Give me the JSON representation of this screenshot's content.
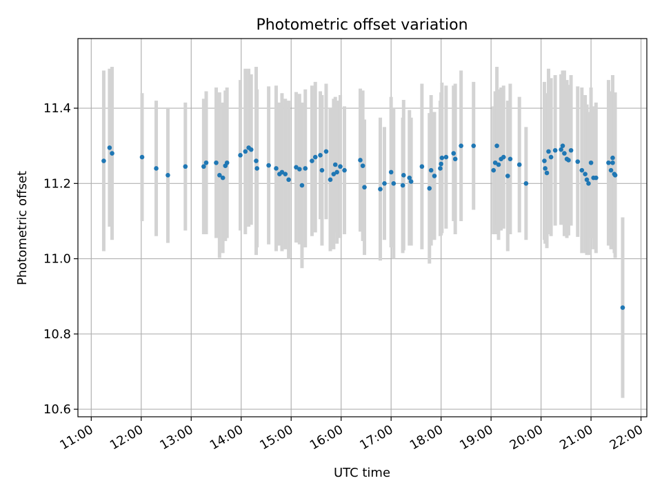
{
  "chart_data": {
    "type": "scatter",
    "title": "Photometric offset variation",
    "xlabel": "UTC time",
    "ylabel": "Photometric offset",
    "x_tick_labels": [
      "11:00",
      "12:00",
      "13:00",
      "14:00",
      "15:00",
      "16:00",
      "17:00",
      "18:00",
      "19:00",
      "20:00",
      "21:00",
      "22:00"
    ],
    "y_tick_labels": [
      "10.6",
      "10.8",
      "11.0",
      "11.2",
      "11.4"
    ],
    "xlim": [
      "10:44",
      "22:07"
    ],
    "ylim": [
      10.58,
      11.585
    ],
    "grid": true,
    "colors": {
      "points": "#1f77b4",
      "errorbars": "#d3d3d3",
      "grid": "#b0b0b0"
    },
    "series": [
      {
        "x": [
          "11:15",
          "11:22",
          "11:25",
          "12:01",
          "12:18",
          "12:32",
          "12:53",
          "13:15",
          "13:18",
          "13:30",
          "13:34",
          "13:38",
          "13:41",
          "13:43",
          "13:59",
          "14:05",
          "14:09",
          "14:12",
          "14:18",
          "14:19",
          "14:33",
          "14:42",
          "14:46",
          "14:49",
          "14:53",
          "14:57",
          "15:06",
          "15:10",
          "15:13",
          "15:17",
          "15:25",
          "15:29",
          "15:35",
          "15:37",
          "15:42",
          "15:47",
          "15:51",
          "15:53",
          "15:55",
          "15:59",
          "16:04",
          "16:23",
          "16:26",
          "16:28",
          "16:47",
          "16:52",
          "17:00",
          "17:03",
          "17:14",
          "17:15",
          "17:22",
          "17:24",
          "17:37",
          "17:46",
          "17:48",
          "17:52",
          "17:59",
          "18:00",
          "18:01",
          "18:06",
          "18:15",
          "18:17",
          "18:24",
          "18:39",
          "19:03",
          "19:05",
          "19:07",
          "19:09",
          "19:12",
          "19:15",
          "19:20",
          "19:23",
          "19:34",
          "19:42",
          "20:04",
          "20:05",
          "20:07",
          "20:09",
          "20:12",
          "20:17",
          "20:24",
          "20:26",
          "20:28",
          "20:31",
          "20:33",
          "20:36",
          "20:44",
          "20:49",
          "20:53",
          "20:55",
          "20:57",
          "21:00",
          "21:03",
          "21:06",
          "21:21",
          "21:24",
          "21:26",
          "21:26",
          "21:28",
          "21:29",
          "21:38"
        ],
        "y": [
          11.26,
          11.295,
          11.28,
          11.27,
          11.24,
          11.222,
          11.245,
          11.245,
          11.255,
          11.255,
          11.222,
          11.215,
          11.247,
          11.255,
          11.275,
          11.285,
          11.295,
          11.29,
          11.26,
          11.24,
          11.248,
          11.24,
          11.225,
          11.23,
          11.225,
          11.21,
          11.243,
          11.238,
          11.195,
          11.24,
          11.26,
          11.27,
          11.275,
          11.235,
          11.285,
          11.21,
          11.225,
          11.25,
          11.23,
          11.245,
          11.235,
          11.262,
          11.247,
          11.19,
          11.185,
          11.2,
          11.23,
          11.2,
          11.195,
          11.222,
          11.215,
          11.205,
          11.245,
          11.187,
          11.235,
          11.22,
          11.24,
          11.252,
          11.268,
          11.27,
          11.28,
          11.265,
          11.3,
          11.3,
          11.235,
          11.255,
          11.3,
          11.25,
          11.265,
          11.27,
          11.22,
          11.265,
          11.25,
          11.2,
          11.26,
          11.24,
          11.228,
          11.285,
          11.27,
          11.288,
          11.29,
          11.3,
          11.28,
          11.265,
          11.262,
          11.288,
          11.258,
          11.235,
          11.225,
          11.21,
          11.2,
          11.255,
          11.215,
          11.215,
          11.255,
          11.235,
          11.255,
          11.268,
          11.225,
          11.222,
          10.87
        ],
        "err": [
          0.24,
          0.21,
          0.23,
          0.17,
          0.18,
          0.18,
          0.17,
          0.18,
          0.19,
          0.2,
          0.22,
          0.2,
          0.2,
          0.2,
          0.2,
          0.22,
          0.21,
          0.2,
          0.25,
          0.21,
          0.21,
          0.22,
          0.19,
          0.21,
          0.2,
          0.21,
          0.2,
          0.2,
          0.22,
          0.21,
          0.2,
          0.2,
          0.17,
          0.2,
          0.18,
          0.19,
          0.2,
          0.18,
          0.19,
          0.19,
          0.17,
          0.19,
          0.2,
          0.18,
          0.19,
          0.15,
          0.2,
          0.2,
          0.18,
          0.2,
          0.18,
          0.17,
          0.22,
          0.2,
          0.2,
          0.17,
          0.18,
          0.19,
          0.2,
          0.19,
          0.18,
          0.2,
          0.2,
          0.17,
          0.17,
          0.19,
          0.21,
          0.2,
          0.19,
          0.19,
          0.2,
          0.2,
          0.18,
          0.15,
          0.21,
          0.2,
          0.2,
          0.22,
          0.21,
          0.2,
          0.2,
          0.2,
          0.22,
          0.21,
          0.2,
          0.2,
          0.2,
          0.22,
          0.21,
          0.2,
          0.19,
          0.2,
          0.19,
          0.2,
          0.22,
          0.21,
          0.22,
          0.22,
          0.21,
          0.22,
          0.24
        ]
      }
    ]
  }
}
